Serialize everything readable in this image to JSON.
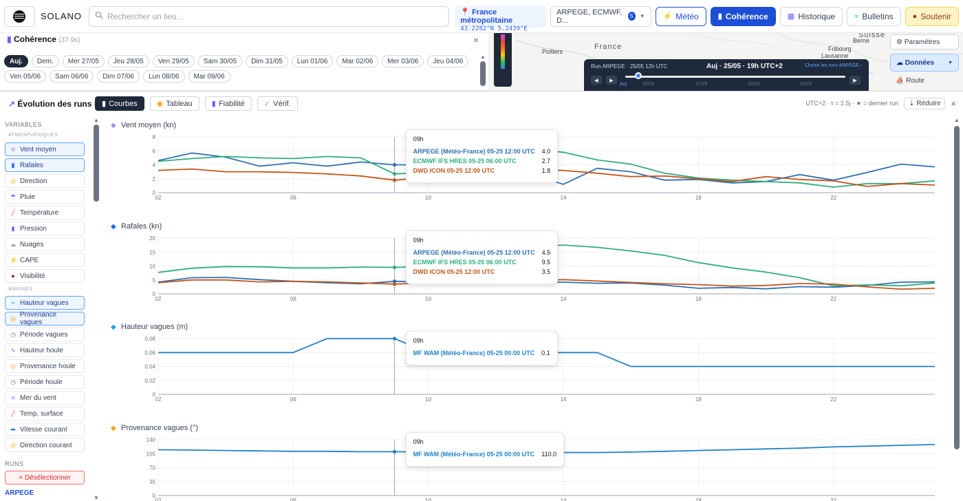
{
  "topbar": {
    "brand": "SOLANO",
    "search_placeholder": "Rechercher un lieu...",
    "location_name": "France métropolitaine",
    "location_coords": "43.2282°N 5.2439°E",
    "models_label": "ARPEGE, ECMWF, D...",
    "models_count": "5",
    "btn_meteo": "Météo",
    "btn_coherence": "Cohérence",
    "btn_historique": "Historique",
    "btn_bulletins": "Bulletins",
    "btn_soutenir": "Soutenir"
  },
  "coherence": {
    "title": "Cohérence",
    "time": "(37.9s)",
    "days": [
      "Auj.",
      "Dem.",
      "Mer 27/05",
      "Jeu 28/05",
      "Ven 29/05",
      "Sam 30/05",
      "Dim 31/05",
      "Lun 01/06",
      "Mar 02/06",
      "Mer 03/06",
      "Jeu 04/06",
      "Ven 05/06",
      "Sam 06/06",
      "Dim 07/06",
      "Lun 08/06",
      "Mar 09/06"
    ]
  },
  "map": {
    "labels": [
      "France",
      "Poitiers",
      "Suisse",
      "Berne",
      "Fribourg",
      "Lausanne"
    ],
    "player_run": "Run ARPEGE · 25/05 12h UTC",
    "player_current": "Auj · 25/05 · 19h UTC+2",
    "player_choose": "Choisir les runs ARPEGE ›",
    "player_ticks": [
      "Auj",
      "26/05",
      "27/05",
      "28/05",
      "29/05"
    ],
    "side_params": "Paramètres",
    "side_donnees": "Données",
    "side_route": "Route"
  },
  "panel": {
    "title": "Évolution des runs",
    "tabs": [
      "Courbes",
      "Tableau",
      "Fiabilité",
      "Vérif."
    ],
    "info": "UTC+2 · τ = 2.5j · ★ = dernier run",
    "reduce": "Réduire"
  },
  "sidebar": {
    "variables_label": "VARIABLES",
    "atmo_label": "· ATMOSPHÉRIQUES",
    "atmo": [
      {
        "label": "Vent moyen",
        "icon": "wind-icon",
        "on": true
      },
      {
        "label": "Rafales",
        "icon": "gust-icon",
        "on": true
      },
      {
        "label": "Direction",
        "icon": "compass-icon",
        "on": false
      },
      {
        "label": "Pluie",
        "icon": "rain-icon",
        "on": false
      },
      {
        "label": "Température",
        "icon": "thermometer-icon",
        "on": false
      },
      {
        "label": "Pression",
        "icon": "barometer-icon",
        "on": false
      },
      {
        "label": "Nuages",
        "icon": "cloud-icon",
        "on": false
      },
      {
        "label": "CAPE",
        "icon": "lightning-icon",
        "on": false
      },
      {
        "label": "Visibilité",
        "icon": "eye-icon",
        "on": false
      }
    ],
    "marine_label": "· MARINES",
    "marine": [
      {
        "label": "Hauteur vagues",
        "icon": "wave-icon",
        "on": true
      },
      {
        "label": "Provenance vagues",
        "icon": "compass-icon",
        "on": true
      },
      {
        "label": "Période vagues",
        "icon": "timer-icon",
        "on": false
      },
      {
        "label": "Hauteur houle",
        "icon": "swell-icon",
        "on": false
      },
      {
        "label": "Provenance houle",
        "icon": "compass-icon",
        "on": false
      },
      {
        "label": "Période houle",
        "icon": "timer-icon",
        "on": false
      },
      {
        "label": "Mer du vent",
        "icon": "wind-icon",
        "on": false
      },
      {
        "label": "Temp. surface",
        "icon": "thermometer-icon",
        "on": false
      },
      {
        "label": "Vitesse courant",
        "icon": "arrow-right-icon",
        "on": false
      },
      {
        "label": "Direction courant",
        "icon": "compass-icon",
        "on": false
      }
    ],
    "runs_label": "RUNS",
    "deselect": "× Désélectionner",
    "run_model": "ARPEGE"
  },
  "colors": {
    "arpege": "#2f6fb0",
    "ecmwf": "#2fae7e",
    "icon": "#c2561b",
    "wam": "#1f82c9",
    "accent": "#1d4ed8"
  },
  "chart_data": [
    {
      "type": "line",
      "title": "Vent moyen (kn)",
      "x_ticks": [
        "02",
        "06",
        "10",
        "14",
        "18",
        "22"
      ],
      "xlim": [
        2,
        25
      ],
      "ylim": [
        0,
        8
      ],
      "y_ticks": [
        0,
        2,
        4,
        6,
        8
      ],
      "cursor_x": 9,
      "tooltip_time": "09h",
      "series": [
        {
          "name": "ARPEGE (Météo-France) 05-25 12:00 UTC",
          "color": "#2f6fb0",
          "tip": "4.0",
          "x": [
            2,
            3,
            4,
            5,
            6,
            7,
            8,
            9,
            10,
            11,
            12,
            13,
            14,
            15,
            16,
            17,
            18,
            19,
            20,
            21,
            22,
            23,
            24,
            25
          ],
          "y": [
            4.6,
            5.7,
            5.1,
            3.8,
            4.3,
            3.8,
            4.4,
            4.0,
            4.0,
            3.7,
            4.0,
            2.7,
            1.2,
            3.5,
            3.0,
            1.8,
            1.9,
            1.4,
            1.6,
            2.6,
            1.8,
            2.9,
            4.1,
            3.7
          ]
        },
        {
          "name": "ECMWF IFS HRES 05-25 06:00 UTC",
          "color": "#2fae7e",
          "tip": "2.7",
          "x": [
            2,
            3,
            4,
            5,
            6,
            7,
            8,
            9,
            10,
            11,
            12,
            13,
            14,
            15,
            16,
            17,
            18,
            19,
            20,
            21,
            22,
            23,
            24,
            25
          ],
          "y": [
            4.5,
            4.9,
            5.2,
            5.0,
            4.9,
            5.2,
            5.0,
            2.7,
            2.9,
            3.0,
            3.5,
            6.3,
            5.8,
            4.7,
            4.1,
            2.8,
            2.1,
            1.8,
            1.6,
            1.4,
            0.8,
            1.3,
            1.3,
            1.7
          ]
        },
        {
          "name": "DWD ICON 05-25 12:00 UTC",
          "color": "#c2561b",
          "tip": "1.8",
          "x": [
            2,
            3,
            4,
            5,
            6,
            7,
            8,
            9,
            10,
            11,
            12,
            13,
            14,
            15,
            16,
            17,
            18,
            19,
            20,
            21,
            22,
            23,
            24,
            25
          ],
          "y": [
            3.2,
            3.4,
            3.0,
            3.0,
            2.9,
            2.7,
            2.4,
            1.8,
            2.2,
            2.7,
            3.1,
            3.3,
            3.2,
            2.8,
            2.3,
            2.4,
            2.0,
            1.6,
            2.3,
            1.9,
            1.7,
            0.9,
            1.3,
            1.1
          ]
        }
      ]
    },
    {
      "type": "line",
      "title": "Rafales (kn)",
      "x_ticks": [
        "02",
        "06",
        "10",
        "14",
        "18",
        "22"
      ],
      "xlim": [
        2,
        25
      ],
      "ylim": [
        0,
        20
      ],
      "y_ticks": [
        0,
        5,
        10,
        15,
        20
      ],
      "cursor_x": 9,
      "tooltip_time": "09h",
      "series": [
        {
          "name": "ARPEGE (Météo-France) 05-25 12:00 UTC",
          "color": "#2f6fb0",
          "tip": "4.5",
          "x": [
            2,
            3,
            4,
            5,
            6,
            7,
            8,
            9,
            10,
            11,
            12,
            13,
            14,
            15,
            16,
            17,
            18,
            19,
            20,
            21,
            22,
            23,
            24,
            25
          ],
          "y": [
            4.2,
            5.8,
            5.9,
            5.1,
            4.5,
            4.0,
            3.6,
            4.5,
            4.2,
            4.1,
            4.1,
            4.2,
            4.2,
            3.8,
            3.9,
            3.1,
            2.0,
            2.3,
            1.8,
            2.6,
            2.4,
            3.0,
            4.2,
            4.3
          ]
        },
        {
          "name": "ECMWF IFS HRES 05-25 06:00 UTC",
          "color": "#2fae7e",
          "tip": "9.5",
          "x": [
            2,
            3,
            4,
            5,
            6,
            7,
            8,
            9,
            10,
            11,
            12,
            13,
            14,
            15,
            16,
            17,
            18,
            19,
            20,
            21,
            22,
            23,
            24,
            25
          ],
          "y": [
            7.7,
            9.2,
            9.8,
            9.7,
            9.3,
            9.3,
            9.6,
            9.5,
            9.8,
            9.9,
            11.0,
            17.1,
            17.5,
            16.7,
            15.4,
            13.8,
            11.2,
            9.3,
            7.8,
            5.8,
            2.9,
            3.2,
            2.9,
            3.9
          ]
        },
        {
          "name": "DWD ICON 05-25 12:00 UTC",
          "color": "#c2561b",
          "tip": "3.5",
          "x": [
            2,
            3,
            4,
            5,
            6,
            7,
            8,
            9,
            10,
            11,
            12,
            13,
            14,
            15,
            16,
            17,
            18,
            19,
            20,
            21,
            22,
            23,
            24,
            25
          ],
          "y": [
            4.0,
            5.0,
            5.0,
            4.3,
            4.5,
            4.3,
            3.9,
            3.5,
            3.9,
            4.2,
            4.2,
            4.6,
            5.1,
            4.6,
            4.1,
            3.6,
            3.3,
            2.8,
            3.0,
            3.7,
            3.5,
            2.5,
            1.7,
            2.0
          ]
        }
      ]
    },
    {
      "type": "line",
      "title": "Hauteur vagues (m)",
      "x_ticks": [
        "02",
        "06",
        "10",
        "14",
        "18",
        "22"
      ],
      "xlim": [
        2,
        25
      ],
      "ylim": [
        0,
        0.08
      ],
      "y_ticks": [
        0,
        0.02,
        0.04,
        0.06,
        0.08
      ],
      "cursor_x": 9,
      "tooltip_time": "09h",
      "series": [
        {
          "name": "MF WAM (Météo-France) 05-25 00:00 UTC",
          "color": "#1f82c9",
          "tip": "0.1",
          "x": [
            2,
            3,
            4,
            5,
            6,
            7,
            8,
            9,
            10,
            11,
            12,
            13,
            14,
            15,
            16,
            17,
            18,
            19,
            20,
            21,
            22,
            23,
            24,
            25
          ],
          "y": [
            0.06,
            0.06,
            0.06,
            0.06,
            0.06,
            0.08,
            0.08,
            0.08,
            0.06,
            0.06,
            0.06,
            0.06,
            0.06,
            0.06,
            0.04,
            0.04,
            0.04,
            0.04,
            0.04,
            0.04,
            0.04,
            0.04,
            0.04,
            0.04
          ]
        }
      ]
    },
    {
      "type": "line",
      "title": "Provenance vagues (°)",
      "x_ticks": [
        "02",
        "06",
        "10",
        "14",
        "18",
        "22"
      ],
      "xlim": [
        2,
        25
      ],
      "ylim": [
        0,
        140
      ],
      "y_ticks": [
        0,
        35,
        70,
        105,
        140
      ],
      "cursor_x": 9,
      "tooltip_time": "09h",
      "series": [
        {
          "name": "MF WAM (Météo-France) 05-25 00:00 UTC",
          "color": "#1f82c9",
          "tip": "110.0",
          "x": [
            2,
            3,
            4,
            5,
            6,
            7,
            8,
            9,
            10,
            11,
            12,
            13,
            14,
            15,
            16,
            17,
            18,
            19,
            20,
            21,
            22,
            23,
            24,
            25
          ],
          "y": [
            115,
            114,
            113,
            112,
            111,
            111,
            110,
            110,
            109,
            109,
            109,
            108,
            108,
            108,
            109,
            111,
            113,
            115,
            117,
            119,
            122,
            124,
            126,
            128
          ]
        }
      ]
    }
  ]
}
